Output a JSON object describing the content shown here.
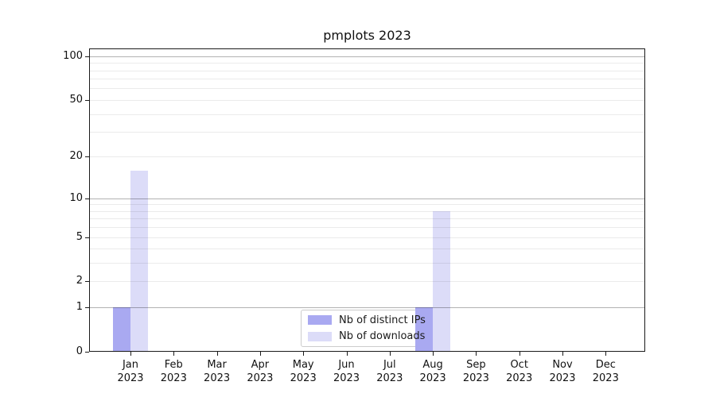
{
  "window": {
    "background": "#ffffff"
  },
  "chart_data": {
    "type": "bar",
    "title": "pmplots 2023",
    "categories": [
      "Jan",
      "Feb",
      "Mar",
      "Apr",
      "May",
      "Jun",
      "Jul",
      "Aug",
      "Sep",
      "Oct",
      "Nov",
      "Dec"
    ],
    "x_year_label": "2023",
    "series": [
      {
        "name": "Nb of distinct IPs",
        "color": "#a9a9f1",
        "values": [
          1,
          0,
          0,
          0,
          0,
          0,
          0,
          1,
          0,
          0,
          0,
          0
        ]
      },
      {
        "name": "Nb of downloads",
        "color": "#dcdcf8",
        "values": [
          16,
          0,
          0,
          0,
          0,
          0,
          0,
          8,
          0,
          0,
          0,
          0
        ]
      }
    ],
    "xlabel": "",
    "ylabel": "",
    "y_axis": {
      "scale": "log1p",
      "ticks": [
        0,
        1,
        2,
        5,
        10,
        20,
        50,
        100
      ],
      "ylim": [
        0,
        113
      ]
    },
    "grid": {
      "major_values": [
        1,
        10,
        100
      ],
      "minor_values": [
        2,
        3,
        4,
        5,
        6,
        7,
        8,
        9,
        20,
        30,
        40,
        50,
        60,
        70,
        80,
        90
      ],
      "major_color": "rgba(0,0,0,0.30)",
      "minor_color": "rgba(0,0,0,0.08)",
      "drawn_over_bars": true
    },
    "legend": {
      "position": "lower-center",
      "entries": [
        "Nb of distinct IPs",
        "Nb of downloads"
      ]
    }
  }
}
